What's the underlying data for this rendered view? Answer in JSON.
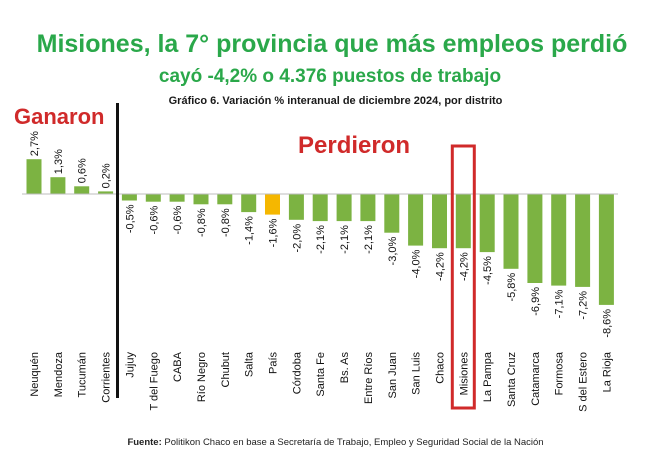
{
  "headline": "Misiones, la 7° provincia que más empleos perdió",
  "subheadline": "cayó -4,2% o 4.376 puestos de trabajo",
  "chart_title": "Gráfico 6. Variación % interanual de diciembre 2024, por distrito",
  "label_gained": "Ganaron",
  "label_lost": "Perdieron",
  "source_prefix": "Fuente:",
  "source_text": "Politikon Chaco en base a Secretaría de Trabajo, Empleo y Seguridad Social de la Nación",
  "colors": {
    "bar": "#7cb342",
    "highlight_bar": "#f5b700",
    "accent_text": "#2aa84a",
    "highlight_box": "#d02a2a"
  },
  "chart_data": {
    "type": "bar",
    "title": "Gráfico 6. Variación % interanual de diciembre 2024, por distrito",
    "xlabel": "",
    "ylabel": "",
    "categories": [
      "Neuquén",
      "Mendoza",
      "Tucumán",
      "Corrientes",
      "Jujuy",
      "T del Fuego",
      "CABA",
      "Río Negro",
      "Chubut",
      "Salta",
      "País",
      "Córdoba",
      "Santa Fe",
      "Bs. As",
      "Entre Ríos",
      "San Juan",
      "San Luis",
      "Chaco",
      "Misiones",
      "La Pampa",
      "Santa Cruz",
      "Catamarca",
      "Formosa",
      "S del Estero",
      "La Rioja"
    ],
    "values": [
      2.7,
      1.3,
      0.6,
      0.2,
      -0.5,
      -0.6,
      -0.6,
      -0.8,
      -0.8,
      -1.4,
      -1.6,
      -2.0,
      -2.1,
      -2.1,
      -2.1,
      -3.0,
      -4.0,
      -4.2,
      -4.2,
      -4.5,
      -5.8,
      -6.9,
      -7.1,
      -7.2,
      -8.6
    ],
    "value_labels": [
      "2,7%",
      "1,3%",
      "0,6%",
      "0,2%",
      "-0,5%",
      "-0,6%",
      "-0,6%",
      "-0,8%",
      "-0,8%",
      "-1,4%",
      "-1,6%",
      "-2,0%",
      "-2,1%",
      "-2,1%",
      "-2,1%",
      "-3,0%",
      "-4,0%",
      "-4,2%",
      "-4,2%",
      "-4,5%",
      "-5,8%",
      "-6,9%",
      "-7,1%",
      "-7,2%",
      "-8,6%"
    ],
    "highlighted_category": "País",
    "boxed_category": "Misiones",
    "ylim": [
      -8.6,
      2.7
    ],
    "grid": false,
    "legend": "none"
  }
}
